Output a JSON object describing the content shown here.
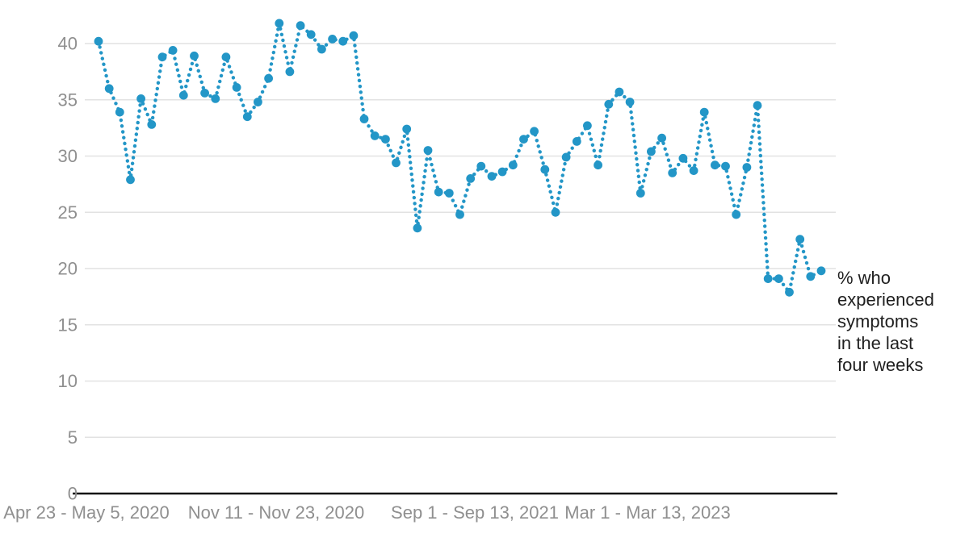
{
  "chart_data": {
    "type": "line",
    "line_style": "dotted",
    "markers": true,
    "title": "",
    "xlabel": "",
    "ylabel": "",
    "x_tick_labels": [
      "Apr 23 - May 5, 2020",
      "Nov 11 - Nov 23, 2020",
      "Sep 1 - Sep 13, 2021",
      "Mar 1 - Mar 13, 2023"
    ],
    "y_ticks": [
      0,
      5,
      10,
      15,
      20,
      25,
      30,
      35,
      40
    ],
    "ylim": [
      0,
      42.5
    ],
    "grid": "horizontal",
    "legend_position": "none",
    "series": [
      {
        "name": "% who experienced symptoms in the last four weeks",
        "values": [
          40.2,
          36.0,
          33.9,
          27.9,
          35.1,
          32.8,
          38.8,
          39.4,
          35.4,
          38.9,
          35.6,
          35.1,
          38.8,
          36.1,
          33.5,
          34.8,
          36.9,
          41.8,
          37.5,
          41.6,
          40.8,
          39.5,
          40.4,
          40.2,
          40.7,
          33.3,
          31.8,
          31.5,
          29.4,
          32.4,
          23.6,
          30.5,
          26.8,
          26.7,
          24.8,
          28.0,
          29.1,
          28.2,
          28.6,
          29.2,
          31.5,
          32.2,
          28.8,
          25.0,
          29.9,
          31.3,
          32.7,
          29.2,
          34.6,
          35.7,
          34.8,
          26.7,
          30.4,
          31.6,
          28.5,
          29.8,
          28.7,
          33.9,
          29.2,
          29.1,
          24.8,
          29.0,
          34.5,
          19.1,
          19.1,
          17.9,
          22.6,
          19.3,
          19.8
        ]
      }
    ],
    "colors": {
      "line": "#2396c7",
      "marker": "#2396c7",
      "grid": "#e2e2e2",
      "axis": "#111111",
      "tick_label": "#8f8f8f",
      "annotation_text": "#1f1f1f",
      "background": "#ffffff"
    }
  },
  "annotation": {
    "text": "% who experienced symptoms in the last four weeks",
    "lines": [
      "% who",
      "experienced",
      "symptoms",
      "in the last",
      "four weeks"
    ]
  }
}
